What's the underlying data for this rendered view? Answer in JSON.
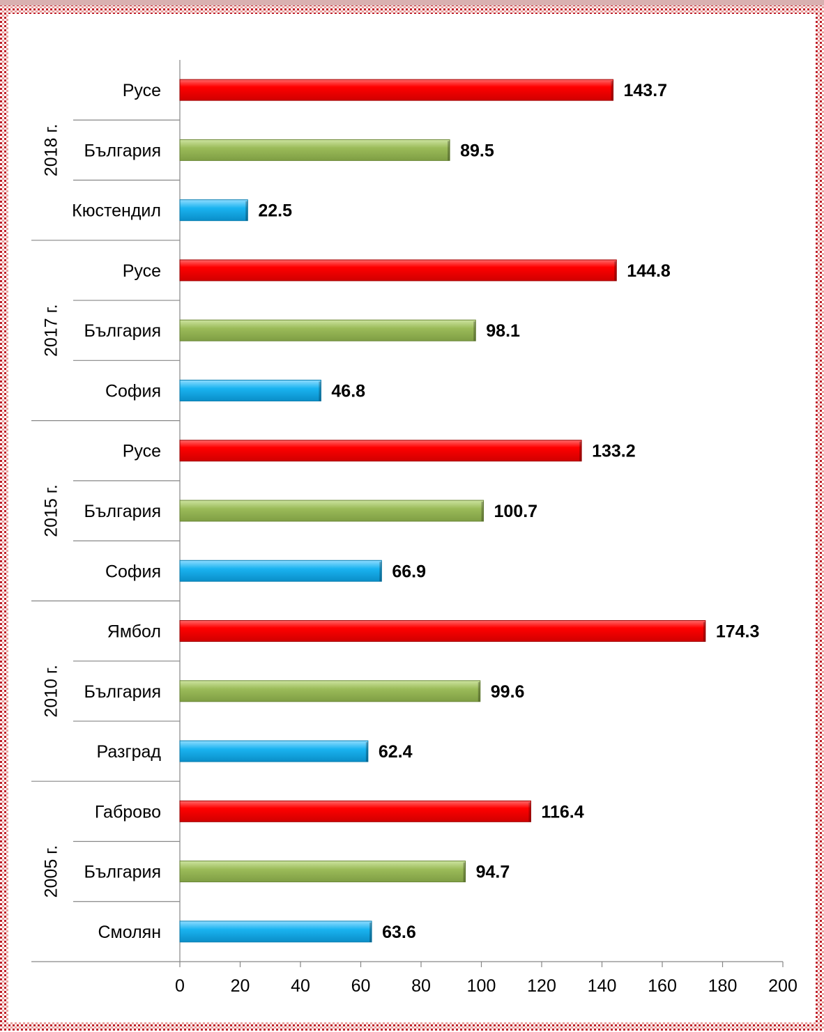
{
  "chart_data": {
    "type": "bar",
    "orientation": "horizontal",
    "groups": [
      {
        "label": "2018 г.",
        "items": [
          {
            "category": "Русе",
            "value": 143.7,
            "color": "red"
          },
          {
            "category": "България",
            "value": 89.5,
            "color": "green"
          },
          {
            "category": "Кюстендил",
            "value": 22.5,
            "color": "blue"
          }
        ]
      },
      {
        "label": "2017 г.",
        "items": [
          {
            "category": "Русе",
            "value": 144.8,
            "color": "red"
          },
          {
            "category": "България",
            "value": 98.1,
            "color": "green"
          },
          {
            "category": "София",
            "value": 46.8,
            "color": "blue"
          }
        ]
      },
      {
        "label": "2015 г.",
        "items": [
          {
            "category": "Русе",
            "value": 133.2,
            "color": "red"
          },
          {
            "category": "България",
            "value": 100.7,
            "color": "green"
          },
          {
            "category": "София",
            "value": 66.9,
            "color": "blue"
          }
        ]
      },
      {
        "label": "2010 г.",
        "items": [
          {
            "category": "Ямбол",
            "value": 174.3,
            "color": "red"
          },
          {
            "category": "България",
            "value": 99.6,
            "color": "green"
          },
          {
            "category": "Разград",
            "value": 62.4,
            "color": "blue"
          }
        ]
      },
      {
        "label": "2005 г.",
        "items": [
          {
            "category": "Габрово",
            "value": 116.4,
            "color": "red"
          },
          {
            "category": "България",
            "value": 94.7,
            "color": "green"
          },
          {
            "category": "Смолян",
            "value": 63.6,
            "color": "blue"
          }
        ]
      }
    ],
    "xlim": [
      0,
      200
    ],
    "xticks": [
      0,
      20,
      40,
      60,
      80,
      100,
      120,
      140,
      160,
      180,
      200
    ],
    "data_labels": true,
    "grid": false,
    "legend": false
  },
  "colors": {
    "red": "#ff0000",
    "green": "#9bbb59",
    "blue": "#1ab3f0",
    "frame_pattern": "#c0202a"
  }
}
